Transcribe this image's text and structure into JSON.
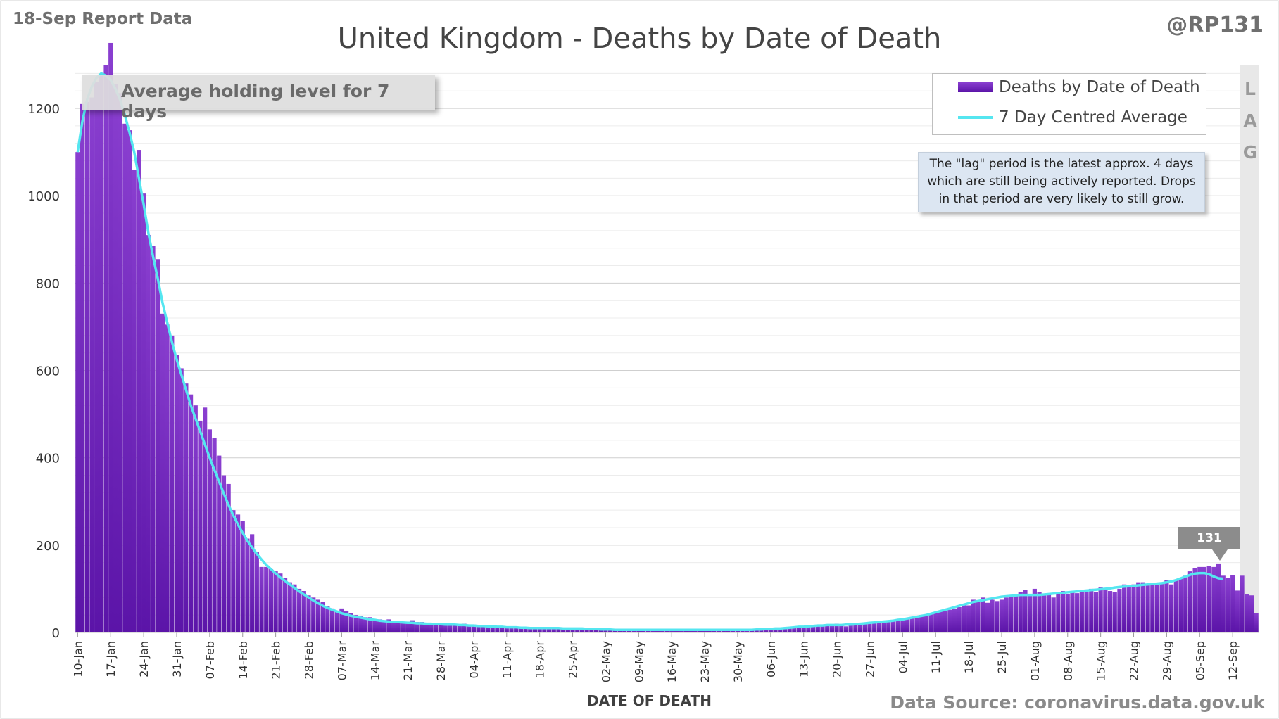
{
  "header": {
    "report_label": "18-Sep Report Data",
    "author": "@RP131",
    "title": "United Kingdom - Deaths by Date of Death"
  },
  "annotations": {
    "holding_note": "Average holding level for 7 days",
    "lag_letters": [
      "L",
      "A",
      "G"
    ],
    "lag_note_lines": [
      "The \"lag\" period is the latest approx. 4 days",
      "which are still being actively reported.  Drops",
      "in that period are very likely to still grow."
    ],
    "callout_value": "131"
  },
  "legend": {
    "bar_label": "Deaths by Date of Death",
    "line_label": "7 Day Centred Average"
  },
  "footer": {
    "xlabel": "DATE OF DEATH",
    "source": "Data Source: coronavirus.data.gov.uk"
  },
  "colors": {
    "bar_top": "#8a3fd0",
    "bar_bottom": "#5b14a8",
    "line": "#55e6f0",
    "gridline": "#d9d9d9",
    "lag_shade": "#e8e8e8"
  },
  "chart_data": {
    "type": "bar",
    "title": "United Kingdom - Deaths by Date of Death",
    "xlabel": "DATE OF DEATH",
    "ylabel": "",
    "ylim": [
      0,
      1300
    ],
    "yticks": [
      0,
      200,
      400,
      600,
      800,
      1000,
      1200
    ],
    "grid": true,
    "legend_position": "top-right",
    "start_date": "2021-01-10",
    "tick_labels": [
      "10-Jan",
      "17-Jan",
      "24-Jan",
      "31-Jan",
      "07-Feb",
      "14-Feb",
      "21-Feb",
      "28-Feb",
      "07-Mar",
      "14-Mar",
      "21-Mar",
      "28-Mar",
      "04-Apr",
      "11-Apr",
      "18-Apr",
      "25-Apr",
      "02-May",
      "09-May",
      "16-May",
      "23-May",
      "30-May",
      "06-Jun",
      "13-Jun",
      "20-Jun",
      "27-Jun",
      "04-Jul",
      "11-Jul",
      "18-Jul",
      "25-Jul",
      "01-Aug",
      "08-Aug",
      "15-Aug",
      "22-Aug",
      "29-Aug",
      "05-Sep",
      "12-Sep"
    ],
    "lag_days": 4,
    "series": [
      {
        "name": "Deaths by Date of Death",
        "type": "bar",
        "values": [
          1100,
          1210,
          1215,
          1225,
          1260,
          1275,
          1300,
          1350,
          1255,
          1235,
          1165,
          1150,
          1060,
          1105,
          1005,
          910,
          885,
          855,
          730,
          705,
          680,
          635,
          605,
          570,
          545,
          520,
          485,
          515,
          465,
          445,
          405,
          360,
          340,
          280,
          270,
          255,
          215,
          225,
          185,
          150,
          150,
          145,
          140,
          135,
          125,
          115,
          110,
          100,
          95,
          85,
          80,
          75,
          70,
          60,
          55,
          50,
          55,
          50,
          45,
          40,
          38,
          35,
          35,
          30,
          30,
          28,
          30,
          25,
          27,
          25,
          25,
          28,
          24,
          24,
          22,
          20,
          20,
          22,
          18,
          18,
          20,
          18,
          20,
          18,
          18,
          17,
          16,
          15,
          15,
          15,
          14,
          13,
          12,
          13,
          12,
          11,
          10,
          12,
          10,
          10,
          9,
          10,
          11,
          10,
          9,
          10,
          9,
          8,
          9,
          10,
          9,
          10,
          8,
          7,
          8,
          6,
          6,
          6,
          5,
          6,
          6,
          5,
          5,
          6,
          5,
          6,
          5,
          6,
          5,
          7,
          6,
          6,
          7,
          6,
          7,
          6,
          5,
          6,
          6,
          5,
          5,
          5,
          4,
          5,
          6,
          7,
          6,
          7,
          8,
          9,
          8,
          10,
          10,
          14,
          12,
          12,
          15,
          16,
          16,
          18,
          17,
          20,
          18,
          14,
          17,
          19,
          18,
          20,
          20,
          22,
          22,
          24,
          25,
          25,
          27,
          28,
          30,
          32,
          35,
          40,
          38,
          42,
          45,
          48,
          50,
          52,
          55,
          58,
          62,
          62,
          75,
          70,
          80,
          68,
          75,
          72,
          75,
          80,
          85,
          88,
          92,
          98,
          85,
          100,
          92,
          88,
          90,
          80,
          92,
          95,
          88,
          92,
          90,
          95,
          92,
          100,
          92,
          103,
          98,
          95,
          92,
          100,
          110,
          105,
          110,
          115,
          115,
          110,
          108,
          112,
          115,
          120,
          110,
          120,
          125,
          130,
          140,
          148,
          150,
          150,
          152,
          150,
          158,
          130,
          125,
          131,
          96,
          130,
          88,
          85,
          45
        ]
      },
      {
        "name": "7 Day Centred Average",
        "type": "line",
        "start_index": 0,
        "values": [
          1100,
          1170,
          1220,
          1250,
          1270,
          1280,
          1275,
          1265,
          1245,
          1220,
          1185,
          1145,
          1100,
          1040,
          980,
          915,
          860,
          810,
          755,
          710,
          665,
          625,
          590,
          555,
          520,
          490,
          460,
          430,
          400,
          372,
          345,
          318,
          292,
          268,
          247,
          228,
          210,
          195,
          180,
          167,
          155,
          145,
          135,
          126,
          118,
          110,
          102,
          94,
          87,
          80,
          73,
          67,
          61,
          56,
          52,
          48,
          44,
          41,
          38,
          36,
          34,
          32,
          30,
          29,
          27,
          26,
          25,
          24,
          24,
          23,
          22,
          22,
          21,
          21,
          20,
          20,
          19,
          19,
          18,
          18,
          18,
          17,
          17,
          16,
          16,
          15,
          15,
          14,
          14,
          13,
          13,
          12,
          12,
          12,
          11,
          11,
          10,
          10,
          10,
          10,
          10,
          10,
          10,
          9,
          9,
          9,
          9,
          9,
          8,
          8,
          8,
          7,
          7,
          7,
          6,
          6,
          6,
          6,
          6,
          6,
          6,
          6,
          6,
          6,
          6,
          6,
          6,
          6,
          6,
          6,
          6,
          6,
          6,
          6,
          6,
          6,
          6,
          6,
          6,
          6,
          6,
          6,
          6,
          6,
          7,
          7,
          8,
          8,
          9,
          9,
          10,
          11,
          12,
          13,
          13,
          14,
          15,
          16,
          16,
          17,
          17,
          17,
          17,
          18,
          18,
          19,
          20,
          21,
          22,
          23,
          24,
          25,
          26,
          27,
          29,
          30,
          32,
          34,
          36,
          38,
          40,
          43,
          46,
          49,
          52,
          55,
          58,
          61,
          64,
          67,
          70,
          72,
          74,
          76,
          78,
          80,
          82,
          83,
          84,
          85,
          86,
          86,
          86,
          86,
          86,
          87,
          88,
          89,
          90,
          91,
          92,
          93,
          94,
          95,
          96,
          97,
          98,
          99,
          100,
          101,
          103,
          104,
          105,
          106,
          107,
          108,
          109,
          110,
          111,
          112,
          113,
          115,
          117,
          120,
          124,
          128,
          132,
          135,
          136,
          136,
          133,
          128,
          124,
          123
        ]
      }
    ]
  }
}
